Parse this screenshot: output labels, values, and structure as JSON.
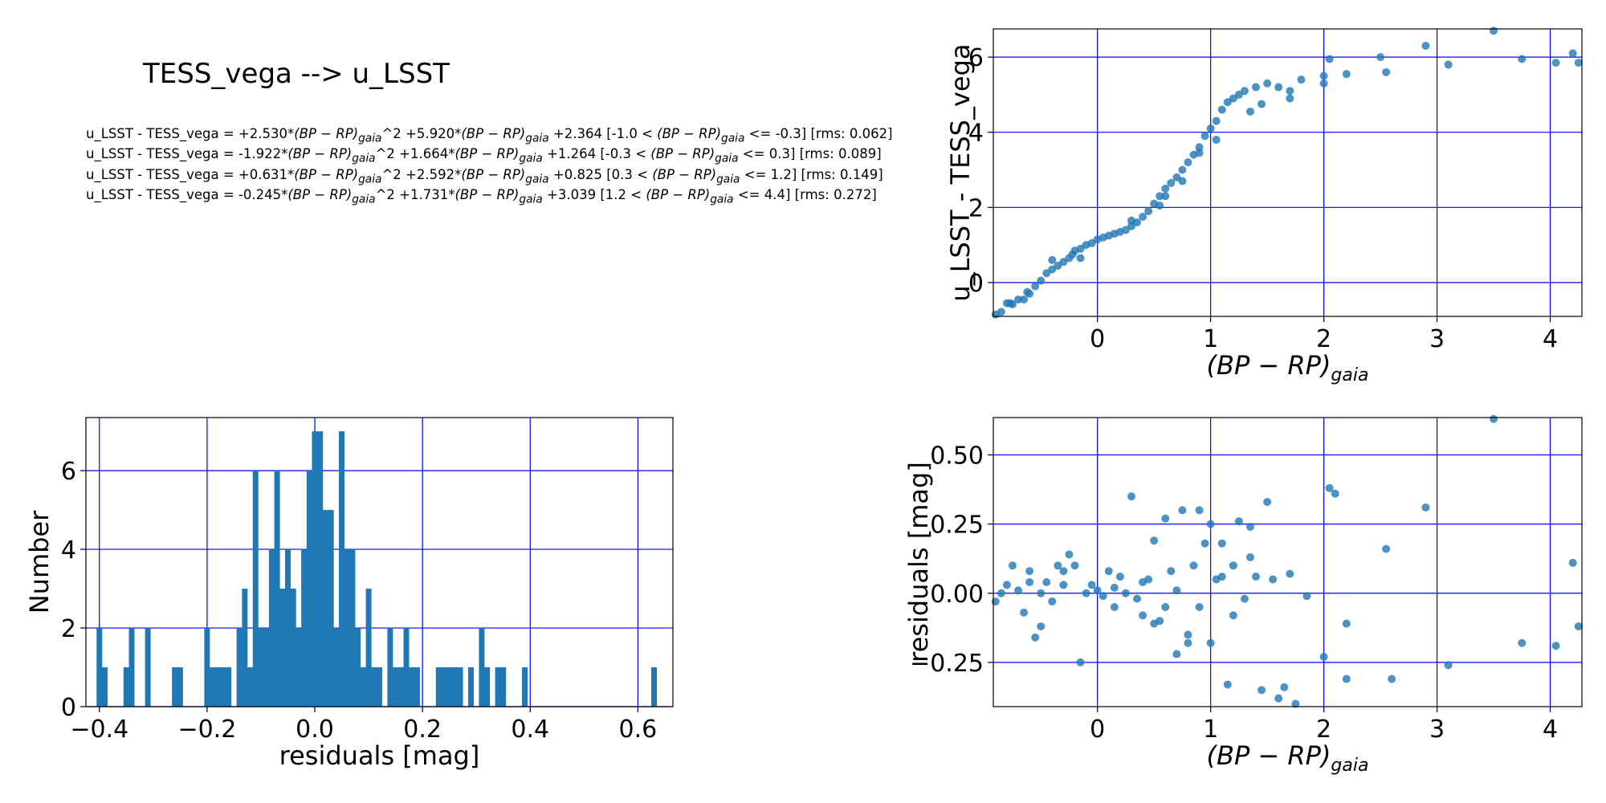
{
  "title": "TESS_vega --> u_LSST",
  "equations": [
    {
      "prefix": "u_LSST - TESS_vega = +2.530*",
      "mid": "^2 +5.920*",
      "const": " +2.364  [-1.0 < ",
      "range": " <= -0.3]  [rms: 0.062]"
    },
    {
      "prefix": "u_LSST - TESS_vega = -1.922*",
      "mid": "^2 +1.664*",
      "const": " +1.264  [-0.3 < ",
      "range": " <= 0.3]  [rms: 0.089]"
    },
    {
      "prefix": "u_LSST - TESS_vega = +0.631*",
      "mid": "^2 +2.592*",
      "const": " +0.825  [0.3 < ",
      "range": " <= 1.2]  [rms: 0.149]"
    },
    {
      "prefix": "u_LSST - TESS_vega = -0.245*",
      "mid": "^2 +1.731*",
      "const": " +3.039  [1.2 < ",
      "range": " <= 4.4]  [rms: 0.272]"
    }
  ],
  "bprp_main": "(BP − RP)",
  "bprp_sub": "gaia",
  "colors": {
    "points": "#1f77b4",
    "bars": "#1f77b4",
    "grid": "#0000ff"
  },
  "chart_data": [
    {
      "id": "color_relation",
      "type": "scatter",
      "xlabel": "(BP − RP)gaia",
      "ylabel": "u_LSST - TESS_vega",
      "xlim": [
        -0.92,
        4.28
      ],
      "ylim": [
        -0.9,
        6.75
      ],
      "xticks": [
        0,
        1,
        2,
        3,
        4
      ],
      "yticks": [
        0,
        2,
        4,
        6
      ],
      "grid": true,
      "points": [
        [
          -0.9,
          -0.85
        ],
        [
          -0.85,
          -0.78
        ],
        [
          -0.8,
          -0.55
        ],
        [
          -0.77,
          -0.55
        ],
        [
          -0.75,
          -0.58
        ],
        [
          -0.7,
          -0.45
        ],
        [
          -0.65,
          -0.45
        ],
        [
          -0.62,
          -0.25
        ],
        [
          -0.6,
          -0.3
        ],
        [
          -0.55,
          -0.1
        ],
        [
          -0.5,
          0.05
        ],
        [
          -0.45,
          0.25
        ],
        [
          -0.4,
          0.35
        ],
        [
          -0.35,
          0.45
        ],
        [
          -0.3,
          0.55
        ],
        [
          -0.25,
          0.65
        ],
        [
          -0.22,
          0.75
        ],
        [
          -0.2,
          0.85
        ],
        [
          -0.15,
          0.9
        ],
        [
          -0.1,
          1.0
        ],
        [
          -0.05,
          1.05
        ],
        [
          0.0,
          1.15
        ],
        [
          0.05,
          1.2
        ],
        [
          0.1,
          1.25
        ],
        [
          0.15,
          1.3
        ],
        [
          0.2,
          1.35
        ],
        [
          0.25,
          1.4
        ],
        [
          0.3,
          1.5
        ],
        [
          0.35,
          1.6
        ],
        [
          0.4,
          1.75
        ],
        [
          0.45,
          1.9
        ],
        [
          0.5,
          2.1
        ],
        [
          0.55,
          2.3
        ],
        [
          0.6,
          2.5
        ],
        [
          0.65,
          2.65
        ],
        [
          0.7,
          2.8
        ],
        [
          0.75,
          3.0
        ],
        [
          0.8,
          3.2
        ],
        [
          0.85,
          3.4
        ],
        [
          0.9,
          3.6
        ],
        [
          0.95,
          3.9
        ],
        [
          1.0,
          4.1
        ],
        [
          1.05,
          4.3
        ],
        [
          1.1,
          4.6
        ],
        [
          1.15,
          4.8
        ],
        [
          1.2,
          4.9
        ],
        [
          1.25,
          5.0
        ],
        [
          1.3,
          5.1
        ],
        [
          1.4,
          5.2
        ],
        [
          1.5,
          5.3
        ],
        [
          1.6,
          5.2
        ],
        [
          1.7,
          5.1
        ],
        [
          1.8,
          5.4
        ],
        [
          2.0,
          5.5
        ],
        [
          2.05,
          5.95
        ],
        [
          2.2,
          5.55
        ],
        [
          2.5,
          6.0
        ],
        [
          2.55,
          5.6
        ],
        [
          2.9,
          6.3
        ],
        [
          3.1,
          5.8
        ],
        [
          3.5,
          6.7
        ],
        [
          3.75,
          5.95
        ],
        [
          4.05,
          5.85
        ],
        [
          4.2,
          6.1
        ],
        [
          4.25,
          5.85
        ],
        [
          -0.4,
          0.6
        ],
        [
          0.3,
          1.65
        ],
        [
          0.6,
          2.3
        ],
        [
          0.75,
          2.7
        ],
        [
          1.35,
          4.55
        ],
        [
          1.45,
          4.75
        ],
        [
          0.9,
          3.45
        ],
        [
          0.55,
          2.05
        ],
        [
          -0.15,
          0.65
        ],
        [
          1.05,
          3.8
        ],
        [
          1.7,
          4.9
        ],
        [
          2.0,
          5.3
        ]
      ]
    },
    {
      "id": "residual_histogram",
      "type": "bar",
      "xlabel": "residuals [mag]",
      "ylabel": "Number",
      "xlim": [
        -0.425,
        0.665
      ],
      "ylim": [
        0,
        7.35
      ],
      "xticks": [
        -0.4,
        -0.2,
        0.0,
        0.2,
        0.4,
        0.6
      ],
      "xtick_labels": [
        "−0.4",
        "−0.2",
        "0.0",
        "0.2",
        "0.4",
        "0.6"
      ],
      "yticks": [
        0,
        2,
        4,
        6
      ],
      "grid": true,
      "bin_width": 0.0104,
      "bins": [
        [
          -0.4,
          2
        ],
        [
          -0.39,
          1
        ],
        [
          -0.35,
          1
        ],
        [
          -0.34,
          2
        ],
        [
          -0.31,
          2
        ],
        [
          -0.26,
          1
        ],
        [
          -0.25,
          1
        ],
        [
          -0.2,
          2
        ],
        [
          -0.19,
          1
        ],
        [
          -0.18,
          1
        ],
        [
          -0.17,
          1
        ],
        [
          -0.16,
          1
        ],
        [
          -0.14,
          2
        ],
        [
          -0.13,
          3
        ],
        [
          -0.12,
          1
        ],
        [
          -0.11,
          6
        ],
        [
          -0.1,
          2
        ],
        [
          -0.09,
          2
        ],
        [
          -0.08,
          4
        ],
        [
          -0.07,
          6
        ],
        [
          -0.06,
          3
        ],
        [
          -0.05,
          4
        ],
        [
          -0.04,
          3
        ],
        [
          -0.03,
          2
        ],
        [
          -0.02,
          4
        ],
        [
          -0.01,
          6
        ],
        [
          0.0,
          7
        ],
        [
          0.01,
          7
        ],
        [
          0.02,
          5
        ],
        [
          0.03,
          5
        ],
        [
          0.04,
          2
        ],
        [
          0.05,
          7
        ],
        [
          0.06,
          4
        ],
        [
          0.07,
          4
        ],
        [
          0.08,
          2
        ],
        [
          0.09,
          1
        ],
        [
          0.1,
          3
        ],
        [
          0.11,
          1
        ],
        [
          0.12,
          1
        ],
        [
          0.14,
          2
        ],
        [
          0.15,
          1
        ],
        [
          0.16,
          1
        ],
        [
          0.17,
          2
        ],
        [
          0.18,
          1
        ],
        [
          0.19,
          1
        ],
        [
          0.23,
          1
        ],
        [
          0.24,
          1
        ],
        [
          0.25,
          1
        ],
        [
          0.26,
          1
        ],
        [
          0.27,
          1
        ],
        [
          0.29,
          1
        ],
        [
          0.31,
          2
        ],
        [
          0.32,
          1
        ],
        [
          0.34,
          1
        ],
        [
          0.35,
          1
        ],
        [
          0.39,
          1
        ],
        [
          0.63,
          1
        ]
      ]
    },
    {
      "id": "residuals_vs_color",
      "type": "scatter",
      "xlabel": "(BP − RP)gaia",
      "ylabel": "residuals [mag]",
      "xlim": [
        -0.92,
        4.28
      ],
      "ylim": [
        -0.41,
        0.635
      ],
      "xticks": [
        0,
        1,
        2,
        3,
        4
      ],
      "yticks": [
        -0.25,
        0.0,
        0.25,
        0.5
      ],
      "ytick_labels": [
        "−0.25",
        "0.00",
        "0.25",
        "0.50"
      ],
      "grid": true,
      "points": [
        [
          -0.9,
          -0.03
        ],
        [
          -0.85,
          0.0
        ],
        [
          -0.8,
          0.03
        ],
        [
          -0.75,
          0.1
        ],
        [
          -0.7,
          0.01
        ],
        [
          -0.65,
          -0.07
        ],
        [
          -0.6,
          0.08
        ],
        [
          -0.55,
          -0.16
        ],
        [
          -0.5,
          -0.12
        ],
        [
          -0.45,
          0.04
        ],
        [
          -0.4,
          -0.03
        ],
        [
          -0.35,
          0.1
        ],
        [
          -0.3,
          0.03
        ],
        [
          -0.25,
          0.14
        ],
        [
          -0.2,
          0.1
        ],
        [
          -0.15,
          -0.25
        ],
        [
          -0.1,
          0.0
        ],
        [
          -0.05,
          0.03
        ],
        [
          0.0,
          0.01
        ],
        [
          0.05,
          -0.01
        ],
        [
          0.1,
          0.08
        ],
        [
          0.15,
          -0.05
        ],
        [
          0.2,
          0.06
        ],
        [
          0.25,
          0.0
        ],
        [
          0.3,
          0.35
        ],
        [
          0.35,
          -0.02
        ],
        [
          0.4,
          -0.08
        ],
        [
          0.45,
          0.05
        ],
        [
          0.5,
          0.19
        ],
        [
          0.55,
          -0.1
        ],
        [
          0.6,
          0.27
        ],
        [
          0.65,
          0.08
        ],
        [
          0.7,
          -0.22
        ],
        [
          0.75,
          0.3
        ],
        [
          0.8,
          -0.18
        ],
        [
          0.85,
          0.1
        ],
        [
          0.9,
          0.3
        ],
        [
          0.95,
          0.18
        ],
        [
          1.0,
          -0.18
        ],
        [
          1.05,
          0.05
        ],
        [
          1.1,
          0.18
        ],
        [
          1.15,
          -0.33
        ],
        [
          1.2,
          0.1
        ],
        [
          1.25,
          0.26
        ],
        [
          1.3,
          -0.02
        ],
        [
          1.35,
          0.13
        ],
        [
          1.4,
          0.06
        ],
        [
          1.45,
          -0.35
        ],
        [
          1.5,
          0.33
        ],
        [
          1.55,
          0.05
        ],
        [
          1.6,
          -0.38
        ],
        [
          1.65,
          -0.34
        ],
        [
          1.7,
          0.07
        ],
        [
          1.75,
          -0.4
        ],
        [
          1.85,
          -0.01
        ],
        [
          2.0,
          -0.23
        ],
        [
          2.05,
          0.38
        ],
        [
          2.1,
          0.36
        ],
        [
          2.2,
          -0.11
        ],
        [
          2.2,
          -0.31
        ],
        [
          2.55,
          0.16
        ],
        [
          2.6,
          -0.31
        ],
        [
          2.9,
          0.31
        ],
        [
          3.1,
          -0.26
        ],
        [
          3.5,
          0.63
        ],
        [
          3.75,
          -0.18
        ],
        [
          4.05,
          -0.19
        ],
        [
          4.2,
          0.11
        ],
        [
          4.25,
          -0.12
        ],
        [
          -0.6,
          0.04
        ],
        [
          -0.5,
          0.0
        ],
        [
          -0.3,
          0.08
        ],
        [
          0.15,
          0.02
        ],
        [
          0.4,
          0.04
        ],
        [
          0.6,
          -0.05
        ],
        [
          0.7,
          0.01
        ],
        [
          0.9,
          -0.05
        ],
        [
          1.1,
          0.06
        ],
        [
          1.2,
          -0.08
        ],
        [
          0.5,
          -0.11
        ],
        [
          0.8,
          -0.15
        ],
        [
          1.0,
          0.25
        ],
        [
          1.35,
          0.24
        ]
      ]
    }
  ]
}
